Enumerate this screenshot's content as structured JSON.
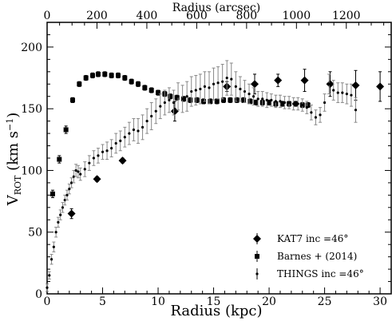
{
  "chart_data": {
    "type": "scatter",
    "xlabel": "Radius (kpc)",
    "ylabel": "V_ROT (km s^-1)",
    "x2label": "Radius (arcsec)",
    "xlim": [
      0,
      31
    ],
    "ylim": [
      0,
      220
    ],
    "x2lim": [
      0,
      1380
    ],
    "xticks": [
      0,
      5,
      10,
      15,
      20,
      25,
      30
    ],
    "yticks": [
      0,
      50,
      100,
      150,
      200
    ],
    "x2ticks": [
      0,
      200,
      400,
      600,
      800,
      1000,
      1200
    ],
    "legend_position": "lower-right",
    "series": [
      {
        "name": "KAT7 inc =46°",
        "marker": "diamond",
        "color": "#000000",
        "x": [
          2.2,
          4.5,
          6.8,
          11.5,
          16.2,
          18.7,
          20.8,
          23.2,
          25.5,
          27.8,
          30.0
        ],
        "y": [
          65,
          93,
          108,
          148,
          168,
          170,
          173,
          173,
          170,
          169,
          168
        ],
        "yerr": [
          4,
          2,
          2,
          8,
          4,
          8,
          5,
          9,
          10,
          12,
          12
        ]
      },
      {
        "name": "Barnes + (2014)",
        "marker": "square",
        "color": "#000000",
        "x": [
          0.5,
          1.1,
          1.7,
          2.3,
          2.9,
          3.5,
          4.1,
          4.6,
          5.2,
          5.8,
          6.4,
          7.0,
          7.6,
          8.2,
          8.8,
          9.4,
          10.0,
          10.6,
          11.1,
          11.7,
          12.3,
          12.9,
          13.5,
          14.1,
          14.7,
          15.3,
          15.9,
          16.5,
          17.1,
          17.7,
          18.3,
          18.8,
          19.4,
          20.0,
          20.6,
          21.2,
          21.8,
          22.4,
          23.0,
          23.5
        ],
        "y": [
          81,
          109,
          133,
          157,
          170,
          175,
          177,
          178,
          178,
          177,
          177,
          175,
          172,
          170,
          167,
          165,
          163,
          162,
          160,
          159,
          158,
          157,
          157,
          156,
          156,
          156,
          157,
          157,
          157,
          157,
          156,
          155,
          155,
          155,
          154,
          154,
          154,
          154,
          153,
          153
        ],
        "yerr": [
          3,
          3,
          3,
          2,
          2,
          2,
          2,
          2,
          2,
          2,
          2,
          2,
          2,
          2,
          2,
          2,
          2,
          2,
          2,
          2,
          2,
          2,
          2,
          2,
          2,
          2,
          2,
          2,
          2,
          2,
          2,
          2,
          2,
          2,
          2,
          2,
          2,
          2,
          2,
          2
        ]
      },
      {
        "name": "THINGS inc =46°",
        "marker": "small-dot",
        "color": "#000000",
        "x": [
          0.0,
          0.2,
          0.4,
          0.6,
          0.8,
          1.0,
          1.2,
          1.4,
          1.6,
          1.8,
          2.0,
          2.2,
          2.4,
          2.6,
          2.8,
          3.0,
          3.4,
          3.8,
          4.2,
          4.6,
          5.0,
          5.4,
          5.8,
          6.2,
          6.6,
          7.0,
          7.4,
          7.8,
          8.2,
          8.6,
          9.0,
          9.4,
          9.8,
          10.2,
          10.6,
          11.0,
          11.4,
          11.8,
          12.2,
          12.6,
          13.0,
          13.4,
          13.8,
          14.2,
          14.6,
          15.0,
          15.4,
          15.8,
          16.2,
          16.6,
          17.0,
          17.4,
          17.8,
          18.2,
          18.6,
          19.0,
          19.4,
          19.8,
          20.2,
          20.6,
          21.0,
          21.4,
          21.8,
          22.2,
          22.6,
          23.0,
          23.4,
          23.8,
          24.2,
          24.6,
          25.0,
          25.4,
          25.8,
          26.2,
          26.6,
          27.0,
          27.4,
          27.8
        ],
        "y": [
          5,
          15,
          28,
          38,
          50,
          58,
          64,
          70,
          76,
          80,
          85,
          90,
          95,
          100,
          99,
          97,
          101,
          106,
          110,
          112,
          115,
          116,
          118,
          122,
          124,
          127,
          130,
          133,
          132,
          135,
          140,
          144,
          148,
          152,
          155,
          157,
          155,
          160,
          158,
          160,
          164,
          165,
          166,
          168,
          167,
          170,
          171,
          172,
          175,
          174,
          168,
          166,
          164,
          162,
          160,
          158,
          158,
          157,
          157,
          156,
          156,
          155,
          155,
          154,
          154,
          153,
          151,
          147,
          143,
          145,
          155,
          170,
          165,
          163,
          163,
          162,
          161,
          149
        ],
        "yerr": [
          3,
          3,
          4,
          4,
          4,
          4,
          4,
          4,
          4,
          4,
          4,
          4,
          5,
          5,
          5,
          5,
          6,
          6,
          6,
          6,
          6,
          7,
          7,
          8,
          8,
          8,
          9,
          9,
          10,
          10,
          10,
          11,
          10,
          10,
          10,
          10,
          10,
          11,
          11,
          12,
          12,
          12,
          12,
          12,
          13,
          13,
          13,
          14,
          14,
          13,
          12,
          10,
          9,
          8,
          7,
          6,
          6,
          6,
          5,
          5,
          5,
          5,
          5,
          5,
          5,
          5,
          5,
          6,
          6,
          6,
          7,
          8,
          8,
          8,
          8,
          8,
          9,
          10
        ]
      }
    ]
  }
}
